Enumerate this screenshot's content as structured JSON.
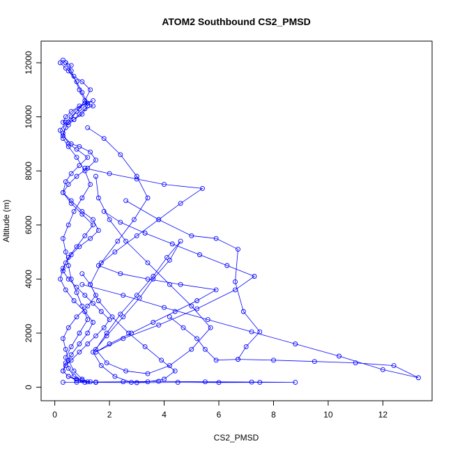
{
  "chart_data": {
    "type": "line",
    "title": "ATOM2 Southbound CS2_PMSD",
    "xlabel": "CS2_PMSD",
    "ylabel": "Altitude (m)",
    "xlim": [
      -0.5,
      13.8
    ],
    "ylim": [
      -500,
      12800
    ],
    "x_ticks": [
      0,
      2,
      4,
      6,
      8,
      10,
      12
    ],
    "x_tick_labels": [
      "0",
      "2",
      "4",
      "6",
      "8",
      "10",
      "12"
    ],
    "y_ticks": [
      0,
      2000,
      4000,
      6000,
      8000,
      10000,
      12000
    ],
    "y_tick_labels": [
      "0",
      "2000",
      "4000",
      "6000",
      "8000",
      "10000",
      "12000"
    ],
    "marker": "open-circle",
    "grid": false,
    "series": [
      {
        "color": "#0000ff",
        "x": [
          0.4,
          0.6,
          0.5,
          0.8,
          1.0,
          1.2,
          1.4,
          1.1,
          0.9,
          0.7,
          0.5,
          0.4,
          0.3,
          0.6,
          0.9,
          1.3,
          1.5,
          1.2,
          0.8,
          0.5,
          0.3,
          0.6,
          1.0,
          1.4,
          1.6,
          1.3,
          0.9,
          0.6,
          0.4,
          0.3,
          0.5,
          0.8,
          1.1,
          1.4,
          1.7,
          2.0,
          1.8,
          1.5,
          1.2,
          0.9,
          0.6,
          0.4,
          0.3,
          0.5,
          0.8,
          1.2,
          1.5,
          1.3,
          1.0,
          0.7,
          0.5,
          0.4,
          0.6,
          0.9,
          1.2,
          1.0,
          0.8,
          0.6,
          0.5,
          0.4,
          0.3,
          0.5,
          0.7,
          1.0,
          1.3,
          1.1,
          0.8,
          0.5,
          0.3,
          0.2,
          0.4,
          0.6,
          0.9,
          1.1,
          1.4,
          1.2,
          0.9,
          0.6,
          0.4,
          0.3,
          0.5,
          0.7,
          1.0,
          1.2,
          0.9,
          0.6,
          0.4,
          0.3,
          0.2,
          0.4,
          0.7,
          1.0,
          1.3,
          1.1,
          0.8,
          0.5,
          0.3,
          0.5,
          0.8,
          1.2,
          0.9,
          0.6,
          0.4,
          0.3,
          0.6,
          1.0,
          1.4,
          1.1,
          0.8,
          0.5,
          0.3,
          0.2,
          0.4,
          0.7,
          1.1,
          1.4,
          1.2,
          0.9,
          0.6,
          0.4,
          0.3,
          0.5,
          0.8,
          1.1,
          1.0,
          0.7,
          0.5,
          0.4,
          0.3,
          0.5,
          0.8,
          1.2,
          1.5,
          1.3,
          1.0
        ],
        "y": [
          12000,
          11900,
          11700,
          11300,
          10900,
          10500,
          10400,
          10300,
          10100,
          9900,
          9800,
          9600,
          9300,
          9000,
          8900,
          8700,
          8400,
          8100,
          7800,
          7500,
          7200,
          6900,
          6500,
          6200,
          5800,
          5500,
          5200,
          4900,
          4600,
          4300,
          4000,
          3700,
          3400,
          3100,
          2800,
          2500,
          2200,
          1900,
          1600,
          1300,
          1000,
          800,
          600,
          400,
          300,
          200,
          180,
          200,
          250,
          400,
          700,
          1100,
          1500,
          2000,
          2500,
          3000,
          3500,
          4000,
          4500,
          5000,
          5500,
          6000,
          6500,
          7000,
          7500,
          8000,
          8500,
          8900,
          9200,
          9500,
          9800,
          10000,
          10300,
          10500,
          10600,
          10500,
          10400,
          10200,
          10000,
          9800,
          9700,
          9900,
          10100,
          10400,
          11000,
          11700,
          12000,
          12100,
          12000,
          11800,
          11500,
          11300,
          11000,
          10600,
          10200,
          9800,
          9400,
          9000,
          8800,
          8500,
          8200,
          7900,
          7600,
          7200,
          6800,
          6400,
          6000,
          5600,
          5200,
          4800,
          4400,
          4000,
          3600,
          3200,
          2800,
          2400,
          2000,
          1600,
          1200,
          900,
          600,
          400,
          250,
          180,
          300,
          600,
          1000,
          1400,
          1800,
          2200,
          2600,
          3000,
          3400,
          3800,
          4200
        ]
      },
      {
        "color": "#0000ff",
        "x": [
          1.2,
          1.8,
          2.4,
          3.0,
          3.4,
          2.9,
          2.3,
          1.7,
          1.3,
          1.6,
          2.1,
          2.7,
          3.3,
          3.9,
          4.4,
          4.0,
          3.4,
          2.8,
          2.2,
          1.7,
          1.4,
          1.9,
          2.5,
          3.1,
          3.6,
          4.2,
          4.6,
          4.1,
          3.6,
          3.0,
          2.4,
          1.9,
          1.5,
          1.9,
          2.6,
          3.4,
          4.2,
          5.0,
          5.7,
          5.0,
          4.2,
          3.4,
          2.6,
          2.0,
          1.6,
          1.5
        ],
        "y": [
          9600,
          9200,
          8600,
          7800,
          7000,
          6200,
          5400,
          4600,
          3800,
          3200,
          2600,
          2000,
          1500,
          1000,
          600,
          300,
          200,
          180,
          400,
          800,
          1300,
          1900,
          2600,
          3300,
          4000,
          4700,
          5400,
          4800,
          4100,
          3400,
          2700,
          2000,
          1400,
          900,
          600,
          500,
          800,
          1400,
          2200,
          3000,
          3800,
          4600,
          5400,
          6200,
          7000,
          7800
        ]
      },
      {
        "color": "#0000ff",
        "x": [
          1.1,
          2.0,
          3.0,
          4.0,
          5.4,
          4.6,
          3.8,
          3.0,
          2.2,
          1.6,
          2.4,
          3.4,
          4.6,
          5.9,
          5.2,
          4.4,
          3.6,
          2.8,
          2.0,
          1.5,
          2.5,
          3.8,
          5.2,
          6.6,
          7.3,
          6.3,
          5.3,
          4.3,
          3.3,
          2.4,
          1.8
        ],
        "y": [
          8100,
          7900,
          7700,
          7500,
          7350,
          6800,
          6200,
          5600,
          5000,
          4500,
          4200,
          4000,
          3800,
          3600,
          3200,
          2800,
          2400,
          2000,
          1600,
          1300,
          1800,
          2300,
          2900,
          3600,
          4100,
          4500,
          4900,
          5300,
          5700,
          6100,
          6500
        ]
      },
      {
        "color": "#0000ff",
        "x": [
          2.6,
          3.8,
          5.0,
          5.9,
          6.7,
          6.6,
          6.9,
          7.5,
          7.0,
          6.7,
          5.9,
          5.5,
          5.2,
          4.7,
          4.2
        ],
        "y": [
          6900,
          6200,
          5600,
          5500,
          5100,
          3900,
          2800,
          2050,
          1500,
          1030,
          1000,
          1400,
          1800,
          2200,
          2600
        ]
      },
      {
        "color": "#0000ff",
        "x": [
          1.0,
          2.5,
          4.0,
          5.6,
          7.2,
          8.8,
          10.4,
          12.0,
          13.3,
          12.4,
          11.0,
          9.5,
          8.0,
          6.7
        ],
        "y": [
          3800,
          3400,
          2950,
          2500,
          2050,
          1600,
          1150,
          650,
          350,
          800,
          900,
          950,
          1000,
          1030
        ]
      },
      {
        "color": "#0000ff",
        "x": [
          0.3,
          1.5,
          3.0,
          4.5,
          6.0,
          7.5,
          8.8,
          7.2,
          5.5,
          3.8,
          2.5,
          1.5,
          0.8
        ],
        "y": [
          180,
          180,
          170,
          180,
          175,
          180,
          180,
          190,
          200,
          220,
          200,
          190,
          185
        ]
      }
    ]
  }
}
